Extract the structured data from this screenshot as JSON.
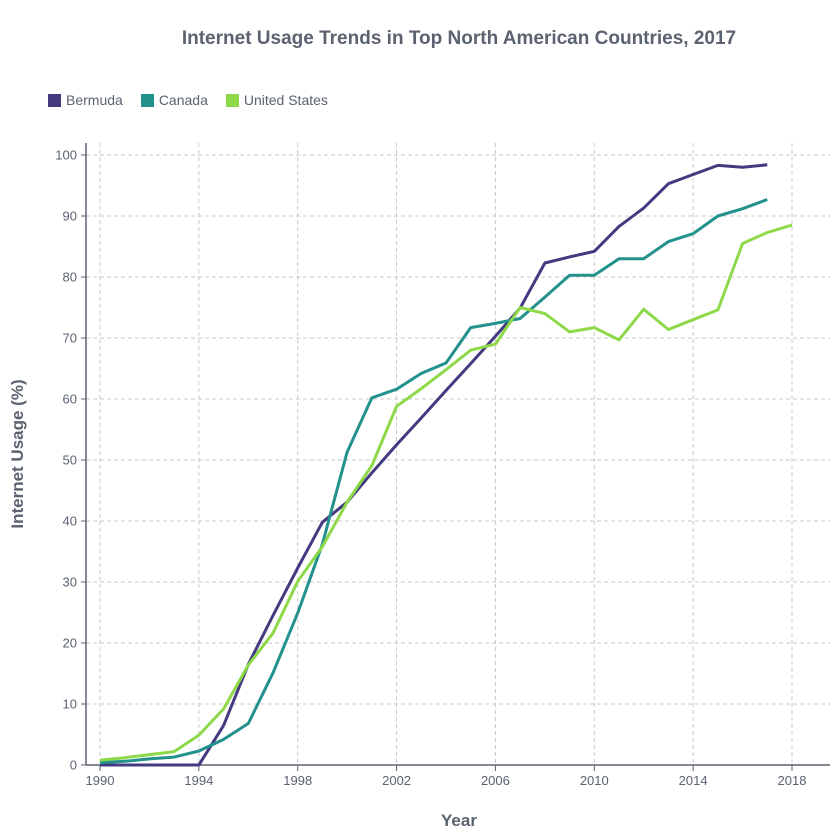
{
  "chart_data": {
    "type": "line",
    "title": "Internet Usage Trends in Top North American Countries, 2017",
    "xlabel": "Year",
    "ylabel": "Internet Usage (%)",
    "xlim": [
      1990,
      2018
    ],
    "ylim": [
      0,
      100
    ],
    "x_ticks": [
      1990,
      1994,
      1998,
      2002,
      2006,
      2010,
      2014,
      2018
    ],
    "y_ticks": [
      0,
      10,
      20,
      30,
      40,
      50,
      60,
      70,
      80,
      90,
      100
    ],
    "grid": true,
    "legend_position": "top-left",
    "series": [
      {
        "name": "Bermuda",
        "color": "#433a80",
        "x": [
          1990,
          1994,
          1995,
          1996,
          1997,
          1998,
          1999,
          2000,
          2001,
          2002,
          2003,
          2004,
          2005,
          2006,
          2007,
          2008,
          2009,
          2010,
          2011,
          2012,
          2013,
          2014,
          2015,
          2016,
          2017
        ],
        "values": [
          0,
          0,
          6.5,
          16.5,
          24.5,
          32.3,
          39.8,
          43.1,
          47.9,
          52.5,
          56.9,
          61.4,
          65.8,
          70.3,
          74.9,
          82.3,
          83.3,
          84.2,
          88.3,
          91.3,
          95.3,
          96.8,
          98.3,
          98.0,
          98.4
        ]
      },
      {
        "name": "Canada",
        "color": "#23918c",
        "x": [
          1990,
          1991,
          1992,
          1993,
          1994,
          1995,
          1996,
          1997,
          1998,
          1999,
          2000,
          2001,
          2002,
          2003,
          2004,
          2005,
          2006,
          2007,
          2008,
          2009,
          2010,
          2011,
          2012,
          2013,
          2014,
          2015,
          2016,
          2017
        ],
        "values": [
          0.4,
          0.6,
          1.0,
          1.3,
          2.3,
          4.2,
          6.8,
          15.1,
          24.9,
          36.2,
          51.3,
          60.2,
          61.6,
          64.2,
          65.9,
          71.7,
          72.4,
          73.2,
          76.7,
          80.3,
          80.3,
          83.0,
          83.0,
          85.8,
          87.1,
          90.0,
          91.2,
          92.7
        ]
      },
      {
        "name": "United States",
        "color": "#8ed94a",
        "x": [
          1990,
          1991,
          1992,
          1993,
          1994,
          1995,
          1996,
          1997,
          1998,
          1999,
          2000,
          2001,
          2002,
          2003,
          2004,
          2005,
          2006,
          2007,
          2008,
          2009,
          2010,
          2011,
          2012,
          2013,
          2014,
          2015,
          2016,
          2017,
          2018
        ],
        "values": [
          0.8,
          1.2,
          1.7,
          2.2,
          4.9,
          9.2,
          16.4,
          21.6,
          30.1,
          35.8,
          43.1,
          49.1,
          58.8,
          61.7,
          64.8,
          68.0,
          69.0,
          75.0,
          74.0,
          71.0,
          71.7,
          69.7,
          74.7,
          71.4,
          73.0,
          74.6,
          85.5,
          87.3,
          88.5
        ]
      }
    ]
  }
}
